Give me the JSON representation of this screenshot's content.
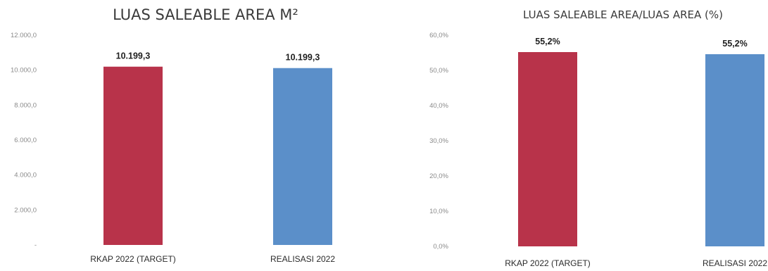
{
  "colors": {
    "target": "#b8334a",
    "realisasi": "#5b8fc9"
  },
  "chart_data": [
    {
      "type": "bar",
      "title": "LUAS SALEABLE AREA M²",
      "categories": [
        "RKAP 2022 (TARGET)",
        "REALISASI 2022"
      ],
      "values": [
        10199.3,
        10199.3
      ],
      "data_labels": [
        "10.199,3",
        "10.199,3"
      ],
      "ylim": [
        0,
        12000
      ],
      "y_ticks": [
        0,
        2000,
        4000,
        6000,
        8000,
        10000,
        12000
      ],
      "y_tick_labels": [
        "-",
        "2.000,0",
        "4.000,0",
        "6.000,0",
        "8.000,0",
        "10.000,0",
        "12.000,0"
      ],
      "xlabel": "",
      "ylabel": "",
      "grid": false
    },
    {
      "type": "bar",
      "title": "LUAS SALEABLE AREA/LUAS AREA (%)",
      "categories": [
        "RKAP 2022 (TARGET)",
        "REALISASI 2022"
      ],
      "values": [
        55.2,
        55.2
      ],
      "data_labels": [
        "55,2%",
        "55,2%"
      ],
      "ylim": [
        0,
        60
      ],
      "y_ticks": [
        0,
        10,
        20,
        30,
        40,
        50,
        60
      ],
      "y_tick_labels": [
        "0,0%",
        "10,0%",
        "20,0%",
        "30,0%",
        "40,0%",
        "50,0%",
        "60,0%"
      ],
      "xlabel": "",
      "ylabel": "",
      "grid": false
    }
  ]
}
